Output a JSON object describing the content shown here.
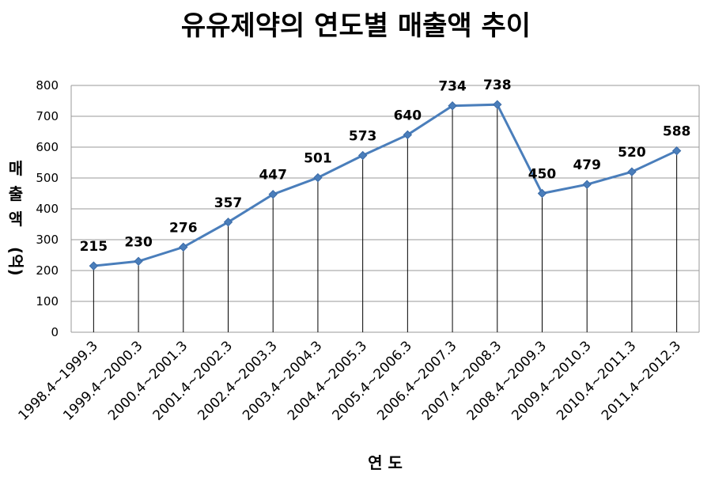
{
  "chart_data": {
    "type": "line",
    "title": "유유제약의 연도별 매출액 추이",
    "xlabel": "연 도",
    "ylabel": "매출액(억)",
    "categories": [
      "1998.4~1999.3",
      "1999.4~2000.3",
      "2000.4~2001.3",
      "2001.4~2002.3",
      "2002.4~2003.3",
      "2003.4~2004.3",
      "2004.4~2005.3",
      "2005.4~2006.3",
      "2006.4~2007.3",
      "2007.4~2008.3",
      "2008.4~2009.3",
      "2009.4~2010.3",
      "2010.4~2011.3",
      "2011.4~2012.3"
    ],
    "values": [
      215,
      230,
      276,
      357,
      447,
      501,
      573,
      640,
      734,
      738,
      450,
      479,
      520,
      588
    ],
    "ylim": [
      0,
      800
    ],
    "yticks": [
      0,
      100,
      200,
      300,
      400,
      500,
      600,
      700,
      800
    ],
    "grid": true,
    "drop_lines": true,
    "data_labels": true,
    "legend": "none",
    "line_color": "#4a7ebb",
    "marker": "diamond"
  }
}
